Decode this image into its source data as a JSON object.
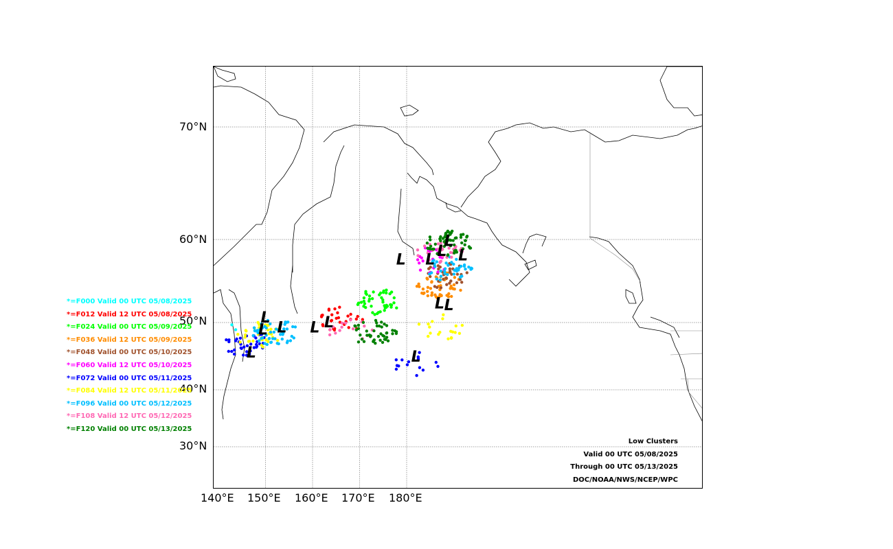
{
  "axes": {
    "lat_labels": [
      "70°N",
      "60°N",
      "50°N",
      "40°N",
      "30°N"
    ],
    "lon_labels": [
      "140°E",
      "150°E",
      "160°E",
      "170°E",
      "180°E"
    ]
  },
  "legend": [
    {
      "text": "*=F000 Valid 00 UTC 05/08/2025",
      "color": "#00ffff"
    },
    {
      "text": "*=F012 Valid 12 UTC 05/08/2025",
      "color": "#ff0000"
    },
    {
      "text": "*=F024 Valid 00 UTC 05/09/2025",
      "color": "#00ff00"
    },
    {
      "text": "*=F036 Valid 12 UTC 05/09/2025",
      "color": "#ff8c00"
    },
    {
      "text": "*=F048 Valid 00 UTC 05/10/2025",
      "color": "#a0522d"
    },
    {
      "text": "*=F060 Valid 12 UTC 05/10/2025",
      "color": "#ff00ff"
    },
    {
      "text": "*=F072 Valid 00 UTC 05/11/2025",
      "color": "#0000ff"
    },
    {
      "text": "*=F084 Valid 12 UTC 05/11/2025",
      "color": "#ffff00"
    },
    {
      "text": "*=F096 Valid 00 UTC 05/12/2025",
      "color": "#00bfff"
    },
    {
      "text": "*=F108 Valid 12 UTC 05/12/2025",
      "color": "#ff69b4"
    },
    {
      "text": "*=F120 Valid 00 UTC 05/13/2025",
      "color": "#008000"
    }
  ],
  "info": {
    "title": "Low Clusters",
    "valid": "Valid 00 UTC 05/08/2025",
    "through": "Through 00 UTC 05/13/2025",
    "credit": "DOC/NOAA/NWS/NCEP/WPC"
  },
  "low_marker_symbol": "L",
  "clusters": [
    {
      "lon": 139.5,
      "lat": 48.5,
      "forecast": "F000",
      "n": 3
    },
    {
      "lon": 166,
      "lat": 50.3,
      "forecast": "F012",
      "n": 30
    },
    {
      "lon": 174,
      "lat": 52.5,
      "forecast": "F024",
      "n": 45
    },
    {
      "lon": 187,
      "lat": 54.5,
      "forecast": "F036",
      "n": 55
    },
    {
      "lon": 188,
      "lat": 55.7,
      "forecast": "F048",
      "n": 35
    },
    {
      "lon": 185,
      "lat": 57.5,
      "forecast": "F060",
      "n": 20
    },
    {
      "lon": 146,
      "lat": 46.8,
      "forecast": "F072",
      "n": 40
    },
    {
      "lon": 182,
      "lat": 44,
      "forecast": "F072",
      "n": 15
    },
    {
      "lon": 148.5,
      "lat": 48.2,
      "forecast": "F084",
      "n": 35
    },
    {
      "lon": 187,
      "lat": 49.3,
      "forecast": "F084",
      "n": 20
    },
    {
      "lon": 152,
      "lat": 48.5,
      "forecast": "F096",
      "n": 50
    },
    {
      "lon": 189,
      "lat": 56.5,
      "forecast": "F096",
      "n": 40
    },
    {
      "lon": 168,
      "lat": 48.5,
      "forecast": "F108",
      "n": 15
    },
    {
      "lon": 187,
      "lat": 58.5,
      "forecast": "F108",
      "n": 30
    },
    {
      "lon": 173,
      "lat": 48.5,
      "forecast": "F120",
      "n": 45
    },
    {
      "lon": 189,
      "lat": 59.5,
      "forecast": "F120",
      "n": 60
    }
  ],
  "lows": [
    {
      "lon": 150,
      "lat": 50
    },
    {
      "lon": 149.5,
      "lat": 48.2
    },
    {
      "lon": 153.5,
      "lat": 48.5
    },
    {
      "lon": 147,
      "lat": 44.8
    },
    {
      "lon": 160.5,
      "lat": 48.5
    },
    {
      "lon": 163.5,
      "lat": 49.3
    },
    {
      "lon": 178.8,
      "lat": 57
    },
    {
      "lon": 185,
      "lat": 57
    },
    {
      "lon": 187.5,
      "lat": 58
    },
    {
      "lon": 189,
      "lat": 59.2
    },
    {
      "lon": 192,
      "lat": 57.5
    },
    {
      "lon": 187,
      "lat": 51.7
    },
    {
      "lon": 189,
      "lat": 51.5
    },
    {
      "lon": 182,
      "lat": 44.2
    }
  ]
}
